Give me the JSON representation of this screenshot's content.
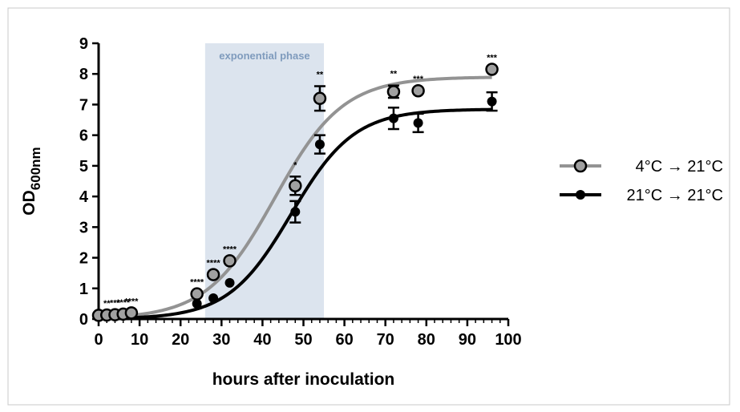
{
  "chart_data": {
    "type": "scatter",
    "xlabel": "hours after inoculation",
    "ylabel_main": "OD",
    "ylabel_sub": "600nm",
    "xlim": [
      0,
      100
    ],
    "ylim": [
      0,
      9
    ],
    "x_ticks": [
      0,
      10,
      20,
      30,
      40,
      50,
      60,
      70,
      80,
      90,
      100
    ],
    "y_ticks": [
      0,
      1,
      2,
      3,
      4,
      5,
      6,
      7,
      8,
      9
    ],
    "shaded_region": {
      "label": "exponential phase",
      "x_start": 26,
      "x_end": 55,
      "color": "#dce4ee"
    },
    "series": [
      {
        "name": "4°C → 21°C",
        "marker_color": "#a0a0a0",
        "line_color": "#939393",
        "fit": {
          "model": "logistic",
          "top": 7.9,
          "midpoint": 43,
          "slope": 0.12
        },
        "points": [
          {
            "x": 0,
            "y": 0.12,
            "err": 0
          },
          {
            "x": 2,
            "y": 0.13,
            "err": 0
          },
          {
            "x": 4,
            "y": 0.14,
            "err": 0
          },
          {
            "x": 6,
            "y": 0.16,
            "err": 0
          },
          {
            "x": 8,
            "y": 0.2,
            "err": 0
          },
          {
            "x": 24,
            "y": 0.82,
            "err": 0
          },
          {
            "x": 28,
            "y": 1.45,
            "err": 0
          },
          {
            "x": 32,
            "y": 1.9,
            "err": 0
          },
          {
            "x": 48,
            "y": 4.35,
            "err": 0.3
          },
          {
            "x": 54,
            "y": 7.2,
            "err": 0.4
          },
          {
            "x": 72,
            "y": 7.42,
            "err": 0.2
          },
          {
            "x": 78,
            "y": 7.45,
            "err": 0
          },
          {
            "x": 96,
            "y": 8.15,
            "err": 0
          }
        ]
      },
      {
        "name": "21°C → 21°C",
        "marker_color": "#000000",
        "line_color": "#000000",
        "fit": {
          "model": "logistic",
          "top": 6.85,
          "midpoint": 47,
          "slope": 0.13
        },
        "points": [
          {
            "x": 0,
            "y": 0.1,
            "err": 0
          },
          {
            "x": 2,
            "y": 0.1,
            "err": 0
          },
          {
            "x": 4,
            "y": 0.11,
            "err": 0
          },
          {
            "x": 6,
            "y": 0.12,
            "err": 0
          },
          {
            "x": 8,
            "y": 0.15,
            "err": 0
          },
          {
            "x": 24,
            "y": 0.5,
            "err": 0
          },
          {
            "x": 28,
            "y": 0.68,
            "err": 0
          },
          {
            "x": 32,
            "y": 1.18,
            "err": 0
          },
          {
            "x": 48,
            "y": 3.5,
            "err": 0.35
          },
          {
            "x": 54,
            "y": 5.7,
            "err": 0.3
          },
          {
            "x": 72,
            "y": 6.55,
            "err": 0.35
          },
          {
            "x": 78,
            "y": 6.4,
            "err": 0.3
          },
          {
            "x": 96,
            "y": 7.1,
            "err": 0.3
          }
        ]
      }
    ],
    "significance": [
      {
        "x": 2,
        "y": 0.13,
        "label": "**"
      },
      {
        "x": 4,
        "y": 0.14,
        "label": "***"
      },
      {
        "x": 6,
        "y": 0.16,
        "label": "****"
      },
      {
        "x": 8,
        "y": 0.2,
        "label": "****"
      },
      {
        "x": 24,
        "y": 0.82,
        "label": "****"
      },
      {
        "x": 28,
        "y": 1.45,
        "label": "****"
      },
      {
        "x": 32,
        "y": 1.9,
        "label": "****"
      },
      {
        "x": 48,
        "y": 4.65,
        "label": "*"
      },
      {
        "x": 54,
        "y": 7.6,
        "label": "**"
      },
      {
        "x": 72,
        "y": 7.62,
        "label": "**"
      },
      {
        "x": 78,
        "y": 7.45,
        "label": "***"
      },
      {
        "x": 96,
        "y": 8.15,
        "label": "***"
      }
    ],
    "legend": {
      "placement": "right"
    }
  }
}
